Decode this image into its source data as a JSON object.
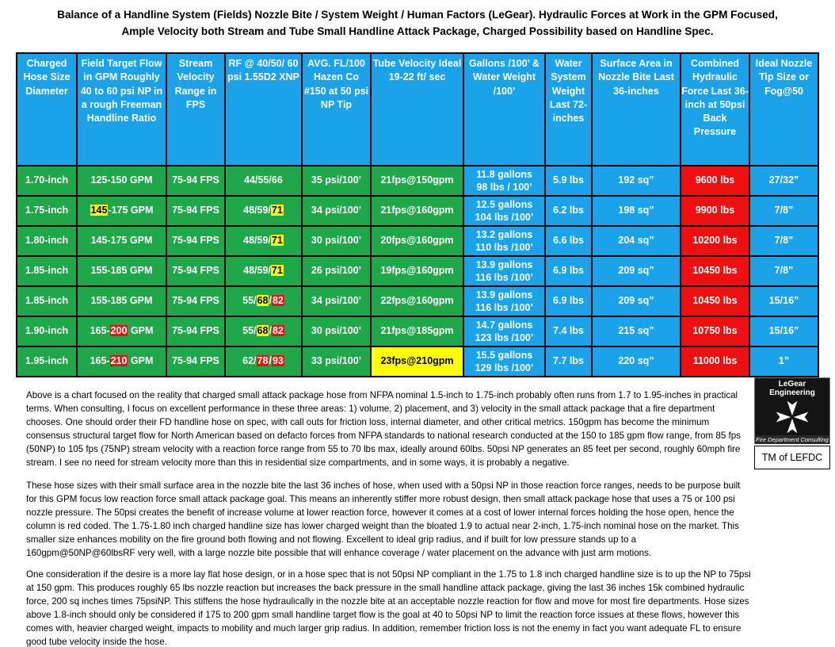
{
  "title": {
    "line1": "Balance of a Handline System (Fields) Nozzle Bite / System Weight / Human Factors (LeGear). Hydraulic Forces at Work in the GPM Focused,",
    "line2": "Ample Velocity both Stream and Tube Small Handline Attack Package, Charged Possibility based on Handline Spec."
  },
  "table": {
    "headers": [
      "Charged Hose Size Diameter",
      "Field Target Flow in GPM Roughly 40 to 60 psi NP in a rough Freeman Handline Ratio",
      "Stream Velocity Range in FPS",
      "RF @ 40/50/ 60 psi 1.55D2 XNP",
      "AVG. FL/100 Hazen Co #150 at 50 psi NP Tip",
      "Tube Velocity Ideal 19-22 ft/ sec",
      "Gallons /100’ & Water Weight /100’",
      "Water System Weight Last 72-inches",
      "Surface Area in Nozzle Bite Last 36-inches",
      "Combined Hydraulic Force Last 36-inch at 50psi Back Pressure",
      "Ideal Nozzle Tip Size or Fog@50"
    ],
    "rows": [
      {
        "size": "1.70-inch",
        "gpm": {
          "pre": "",
          "hl": "",
          "post": "125-150 GPM"
        },
        "velocity": "75-94 FPS",
        "rf": [
          "44/55/66",
          "",
          "",
          "",
          ""
        ],
        "fl": "35 psi/100’",
        "tube": "21fps@150gpm",
        "gal1": "11.8 gallons",
        "gal2": "98 lbs / 100’",
        "weight": "5.9 lbs",
        "area": "192 sq”",
        "force": "9600 lbs",
        "tip": "27/32”"
      },
      {
        "size": "1.75-inch",
        "gpm": {
          "pre": "",
          "hl": "145",
          "post": "-175 GPM"
        },
        "velocity": "75-94 FPS",
        "rf": [
          "48/59/",
          "71",
          "",
          "",
          ""
        ],
        "fl": "34 psi/100’",
        "tube": "21fps@160gpm",
        "gal1": "12.5 gallons",
        "gal2": "104 lbs /100’",
        "weight": "6.2 lbs",
        "area": "198 sq”",
        "force": "9900 lbs",
        "tip": "7/8”"
      },
      {
        "size": "1.80-inch",
        "gpm": {
          "pre": "",
          "hl": "",
          "post": "145-175 GPM"
        },
        "velocity": "75-94 FPS",
        "rf": [
          "48/59/",
          "71",
          "",
          "",
          ""
        ],
        "fl": "30 psi/100’",
        "tube": "20fps@160gpm",
        "gal1": "13.2 gallons",
        "gal2": "110 lbs /100’",
        "weight": "6.6 lbs",
        "area": "204 sq”",
        "force": "10200 lbs",
        "tip": "7/8”"
      },
      {
        "size": "1.85-inch",
        "gpm": {
          "pre": "",
          "hl": "",
          "post": "155-185 GPM"
        },
        "velocity": "75-94 FPS",
        "rf": [
          "48/59/",
          "71",
          "",
          "",
          ""
        ],
        "fl": "26 psi/100’",
        "tube": "19fps@160gpm",
        "gal1": "13.9 gallons",
        "gal2": "116 lbs /100’",
        "weight": "6.9 lbs",
        "area": "209 sq”",
        "force": "10450 lbs",
        "tip": "7/8”"
      },
      {
        "size": "1.85-inch",
        "gpm": {
          "pre": "",
          "hl": "",
          "post": "155-185 GPM"
        },
        "velocity": "75-94 FPS",
        "rf": [
          "55/",
          "68",
          "/",
          "82",
          ""
        ],
        "fl": "34 psi/100’",
        "tube": "22fps@160gpm",
        "gal1": "13.9 gallons",
        "gal2": "116 lbs /100’",
        "weight": "6.9 lbs",
        "area": "209 sq”",
        "force": "10450 lbs",
        "tip": "15/16”"
      },
      {
        "size": "1.90-inch",
        "gpm": {
          "pre": "165-",
          "hl": "200",
          "post": " GPM"
        },
        "velocity": "75-94 FPS",
        "rf": [
          "55/",
          "68",
          "/",
          "82",
          ""
        ],
        "fl": "30 psi/100’",
        "tube": "21fps@185gpm",
        "gal1": "14.7 gallons",
        "gal2": "123 lbs /100’",
        "weight": "7.4 lbs",
        "area": "215 sq”",
        "force": "10750 lbs",
        "tip": "15/16”"
      },
      {
        "size": "1.95-inch",
        "gpm": {
          "pre": "165-",
          "hl": "210",
          "post": " GPM"
        },
        "velocity": "75-94 FPS",
        "rf": [
          "62/",
          "78",
          "/",
          "93",
          ""
        ],
        "fl": "33 psi/100’",
        "tube": "23fps@210gpm",
        "gal1": "15.5 gallons",
        "gal2": "129 lbs /100’",
        "weight": "7.7 lbs",
        "area": "220 sq”",
        "force": "11000 lbs",
        "tip": "1”"
      }
    ]
  },
  "logo": {
    "top": "LeGear Engineering",
    "bottom": "Fire Department Consulting",
    "caption": "TM of LEFDC"
  },
  "paragraphs": [
    "Above is a chart focused on the reality that charged small attack package hose from NFPA nominal 1.5-inch to 1.75-inch probably often runs from 1.7 to 1.95-inches in practical terms.   When consulting, I focus on excellent performance in these three areas: 1) volume, 2) placement, and 3) velocity in the small attack package that a fire department chooses.  One should order their FD handline hose on spec, with call outs for friction loss, internal diameter, and other critical metrics.  150gpm has become the minimum consensus structural target flow for North American based on defacto forces from NFPA standards to national research conducted at the 150 to 185 gpm flow range, from 85 fps (50NP) to 105 fps (75NP) stream velocity with a reaction force range from 55 to 70 lbs max, ideally around 60lbs. 50psi NP generates an 85 feet per second, roughly 60mph fire stream.  I see no need for stream velocity more than this in residential size compartments, and in some ways, it is probably a negative.",
    "These hose sizes with their small surface area in the nozzle bite the last 36 inches of hose, when used with a 50psi NP in those reaction force ranges, needs to be purpose built for this GPM focus low reaction force small attack package goal.  This means an inherently stiffer more robust design, then small attack package hose that uses a 75 or 100 psi nozzle pressure.  The 50psi creates the benefit of increase volume at lower reaction force, however it comes at a cost of lower internal forces holding the hose open, hence the column is red coded. The 1.75-1.80 inch charged handline size has lower charged weight than the bloated 1.9 to actual near 2-inch, 1.75-inch nominal hose on the market.  This smaller size enhances mobility on the fire ground both flowing and not flowing.  Excellent to ideal grip radius, and if built for low pressure stands up to a 160gpm@50NP@60lbsRF very well, with a large nozzle bite possible that will enhance coverage / water placement on the advance with just arm motions.",
    "One consideration if the desire is a more lay flat hose design, or in a hose spec that is not 50psi NP compliant in the 1.75 to 1.8 inch charged handline size is to up the NP to 75psi at 150 gpm.  This produces roughly 65 lbs nozzle reaction but increases the back pressure in the small handline attack package, giving the last 36 inches 15k combined hydraulic force, 200 sq inches times 75psiNP.  This stiffens the hose hydraulically in the nozzle bite at an acceptable nozzle reaction for flow and move for most fire departments.  Hose sizes above 1.8-inch should only be considered if 175 to 200 gpm small handline target flow is the goal at 40 to 50psi NP to limit the reaction force issues at these flows, however this comes with, heavier charged weight, impacts to mobility and much larger grip radius.  In addition, remember friction loss is not the enemy in fact you want adequate FL to ensure good tube velocity inside the hose."
  ],
  "colors": {
    "header_blue": "#1aa3e8",
    "green": "#1ea84a",
    "red": "#ee1010",
    "yellow": "#ffff00"
  },
  "highlights": {
    "rf_1.75": "yellow",
    "rf_1.80": "yellow",
    "rf_1.85_first": "yellow",
    "gpm_145": "yellow",
    "gpm_200": "red",
    "gpm_210": "red"
  }
}
